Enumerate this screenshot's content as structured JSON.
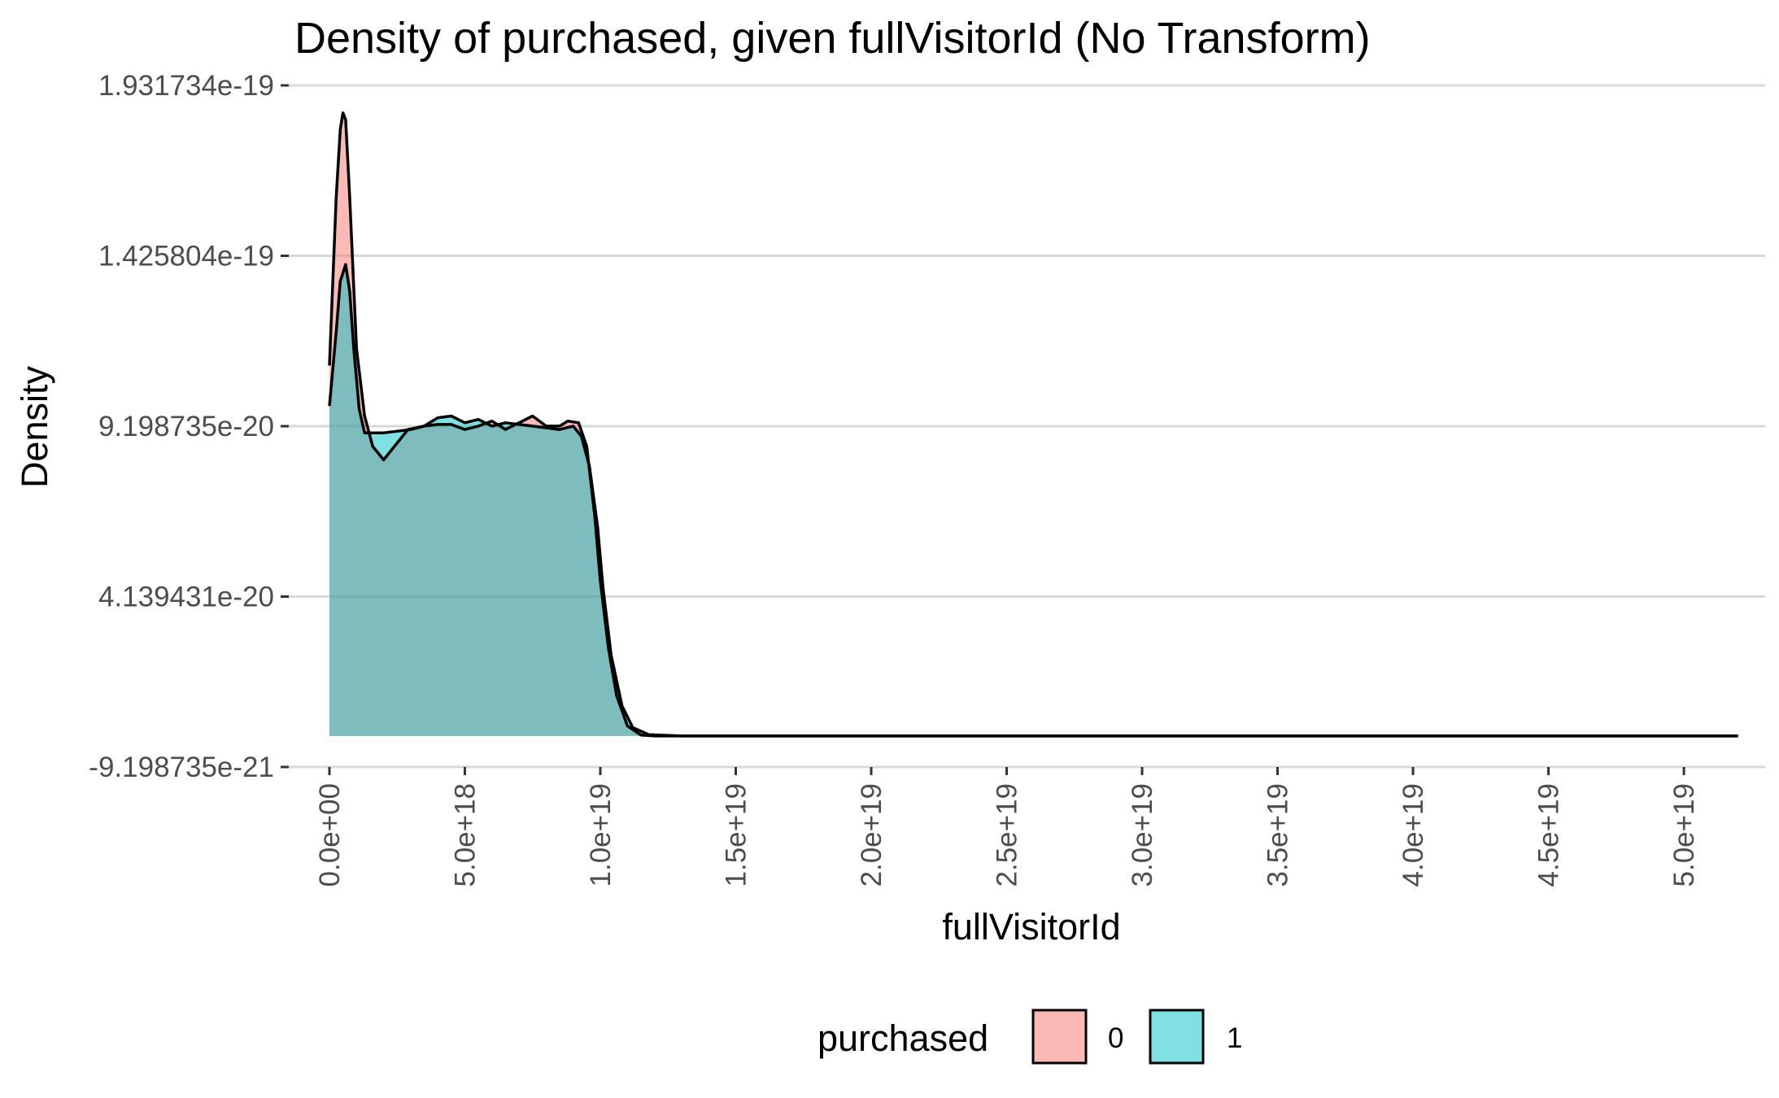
{
  "chart_data": {
    "type": "area",
    "title": "Density of purchased, given fullVisitorId (No Transform)",
    "xlabel": "fullVisitorId",
    "ylabel": "Density",
    "xlim": [
      -1.5e+18,
      5.3e+19
    ],
    "ylim": [
      -9.198735e-21,
      1.931734e-19
    ],
    "x_ticks": [
      {
        "value": 0,
        "label": "0.0e+00"
      },
      {
        "value": 5e+18,
        "label": "5.0e+18"
      },
      {
        "value": 1e+19,
        "label": "1.0e+19"
      },
      {
        "value": 1.5e+19,
        "label": "1.5e+19"
      },
      {
        "value": 2e+19,
        "label": "2.0e+19"
      },
      {
        "value": 2.5e+19,
        "label": "2.5e+19"
      },
      {
        "value": 3e+19,
        "label": "3.0e+19"
      },
      {
        "value": 3.5e+19,
        "label": "3.5e+19"
      },
      {
        "value": 4e+19,
        "label": "4.0e+19"
      },
      {
        "value": 4.5e+19,
        "label": "4.5e+19"
      },
      {
        "value": 5e+19,
        "label": "5.0e+19"
      }
    ],
    "y_ticks": [
      {
        "value": -9.198735e-21,
        "label": "-9.198735e-21"
      },
      {
        "value": 4.139431e-20,
        "label": "4.139431e-20"
      },
      {
        "value": 9.198735e-20,
        "label": "9.198735e-20"
      },
      {
        "value": 1.425804e-19,
        "label": "1.425804e-19"
      },
      {
        "value": 1.931734e-19,
        "label": "1.931734e-19"
      }
    ],
    "grid": "horizontal",
    "legend": {
      "title": "purchased",
      "position": "bottom"
    },
    "series": [
      {
        "name": "0",
        "color": "#F8766D",
        "x": [
          0,
          2.5e+17,
          4e+17,
          5e+17,
          6e+17,
          7.5e+17,
          1e+18,
          1.3e+18,
          1.6e+18,
          2e+18,
          2.4e+18,
          2.9e+18,
          3.5e+18,
          4e+18,
          4.5e+18,
          5e+18,
          5.5e+18,
          6e+18,
          6.5e+18,
          7e+18,
          7.5e+18,
          8e+18,
          8.5e+18,
          8.8e+18,
          9.2e+18,
          9.5e+18,
          9.8e+18,
          1e+19,
          1.03e+19,
          1.06e+19,
          1.1e+19,
          1.15e+19,
          1.2e+19,
          1.5e+19,
          2e+19,
          3e+19,
          4e+19,
          5e+19,
          5.2e+19
        ],
        "y": [
          1.1e-19,
          1.6e-19,
          1.8e-19,
          1.85e-19,
          1.83e-19,
          1.6e-19,
          1.15e-19,
          9.5e-20,
          8.6e-20,
          8.2e-20,
          8.6e-20,
          9.1e-20,
          9.2e-20,
          9.25e-20,
          9.25e-20,
          9.1e-20,
          9.2e-20,
          9.35e-20,
          9.1e-20,
          9.3e-20,
          9.5e-20,
          9.2e-20,
          9.2e-20,
          9.35e-20,
          9.3e-20,
          8.6e-20,
          6.5e-20,
          4.6e-20,
          2.6e-20,
          1.2e-20,
          3e-21,
          3e-22,
          0,
          0,
          0,
          0,
          0,
          0,
          0
        ]
      },
      {
        "name": "1",
        "color": "#00BFC4",
        "x": [
          0,
          2.5e+17,
          4e+17,
          6e+17,
          7.5e+17,
          9e+17,
          1.1e+18,
          1.3e+18,
          1.5e+18,
          2e+18,
          2.5e+18,
          3e+18,
          3.5e+18,
          4e+18,
          4.5e+18,
          5e+18,
          5.5e+18,
          6e+18,
          6.5e+18,
          7e+18,
          7.5e+18,
          8e+18,
          8.5e+18,
          9e+18,
          9.3e+18,
          9.6e+18,
          9.9e+18,
          1.01e+19,
          1.04e+19,
          1.08e+19,
          1.12e+19,
          1.18e+19,
          1.3e+19,
          1.5e+19,
          2e+19,
          3e+19,
          4e+19,
          5e+19,
          5.2e+19
        ],
        "y": [
          9.8e-20,
          1.2e-19,
          1.35e-19,
          1.4e-19,
          1.32e-19,
          1.15e-19,
          9.7e-20,
          9e-20,
          9e-20,
          9e-20,
          9.05e-20,
          9.1e-20,
          9.2e-20,
          9.45e-20,
          9.5e-20,
          9.3e-20,
          9.4e-20,
          9.2e-20,
          9.3e-20,
          9.25e-20,
          9.2e-20,
          9.15e-20,
          9.1e-20,
          9.2e-20,
          8.9e-20,
          8e-20,
          6.2e-20,
          4.4e-20,
          2.4e-20,
          9e-21,
          2.5e-21,
          4e-22,
          0,
          0,
          0,
          0,
          0,
          0,
          0
        ]
      }
    ]
  }
}
